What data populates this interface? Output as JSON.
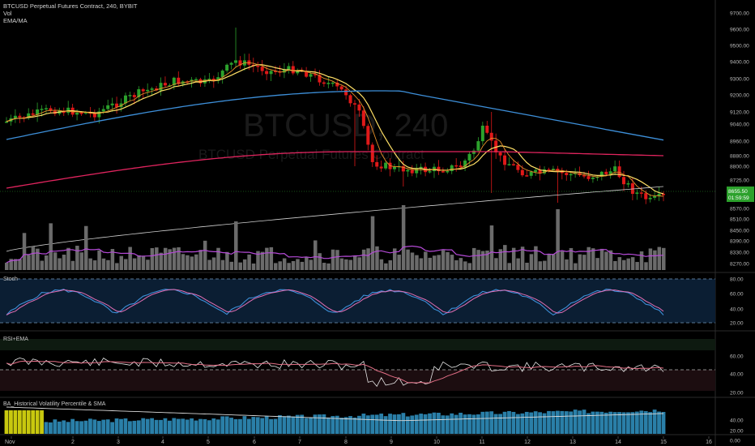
{
  "header": {
    "symbol_line": "BTCUSD Perpetual Futures Contract, 240, BYBIT",
    "vol_label": "Vol",
    "ema_label": "EMA/MA"
  },
  "watermark": {
    "big": "BTCUSD, 240",
    "small": "BTCUSD Perpetual Futures Contract"
  },
  "price_axis": {
    "ticks": [
      "9700.00",
      "9600.00",
      "9500.00",
      "9400.00",
      "9300.00",
      "9200.00",
      "9120.00",
      "9040.00",
      "8960.00",
      "8880.00",
      "8800.00",
      "8725.00",
      "8650.00",
      "8570.00",
      "8510.00",
      "8450.00",
      "8390.00",
      "8330.00",
      "8270.00"
    ],
    "last_price": "8655.50",
    "countdown": "01:59:59"
  },
  "stoch": {
    "title": "Stoch",
    "ticks": [
      "80.00",
      "60.00",
      "40.00",
      "20.00"
    ]
  },
  "rsi": {
    "title": "RSI+EMA",
    "ticks": [
      "60.00",
      "40.00",
      "20.00"
    ]
  },
  "hvp": {
    "title": "BA_Historical Volatility Percentile & SMA",
    "ticks": [
      "40.00",
      "20.00",
      "0.00"
    ]
  },
  "time_axis": {
    "labels": [
      "Nov",
      "2",
      "3",
      "4",
      "5",
      "6",
      "7",
      "8",
      "9",
      "10",
      "11",
      "12",
      "13",
      "14",
      "15",
      "16"
    ]
  },
  "colors": {
    "up": "#2ca12c",
    "down": "#e01919",
    "ema_fast": "#ffe066",
    "ema_mid": "#e8902a",
    "ma_blue": "#3d8fd9",
    "ma_red": "#e0245e",
    "ma_white": "#d0d0d0",
    "vol": "#6b6b6b",
    "vol_ma": "#b44ad6"
  }
}
